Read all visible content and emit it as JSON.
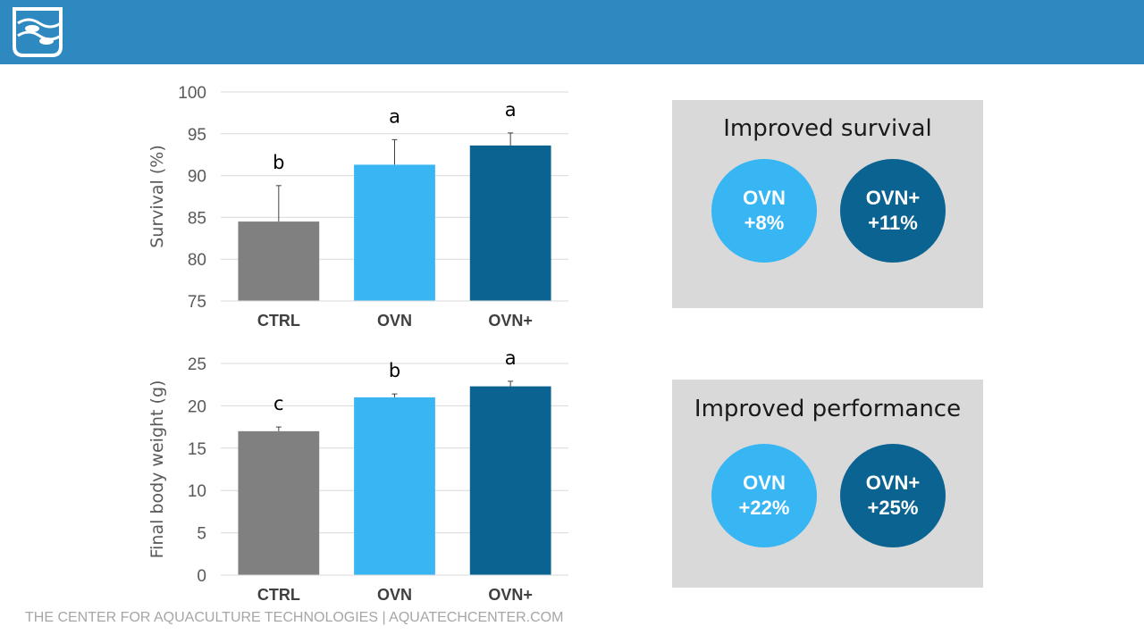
{
  "header": {
    "logo_name": "aquaculture-fish-logo"
  },
  "colors": {
    "header_bar": "#2e89c0",
    "ctrl": "#808080",
    "ovn": "#38b6f4",
    "ovn_plus": "#0b6392",
    "panel": "#d9d9d9"
  },
  "chart_data": [
    {
      "type": "bar",
      "ylabel": "Survival (%)",
      "xlabel": "",
      "ylim": [
        75,
        100
      ],
      "yticks": [
        75,
        80,
        85,
        90,
        95,
        100
      ],
      "grid": true,
      "categories": [
        "CTRL",
        "OVN",
        "OVN+"
      ],
      "values": [
        84.5,
        91.3,
        93.6
      ],
      "error_plus": [
        4.3,
        3.0,
        1.5
      ],
      "significance": [
        "b",
        "a",
        "a"
      ]
    },
    {
      "type": "bar",
      "ylabel": "Final body weight (g)",
      "xlabel": "",
      "ylim": [
        0,
        25
      ],
      "yticks": [
        0,
        5,
        10,
        15,
        20,
        25
      ],
      "grid": true,
      "categories": [
        "CTRL",
        "OVN",
        "OVN+"
      ],
      "values": [
        17.0,
        21.0,
        22.3
      ],
      "error_plus": [
        0.5,
        0.4,
        0.6
      ],
      "significance": [
        "c",
        "b",
        "a"
      ]
    }
  ],
  "panels": {
    "survival": {
      "title": "Improved survival",
      "circles": [
        {
          "name": "OVN",
          "value": "+8%"
        },
        {
          "name": "OVN+",
          "value": "+11%"
        }
      ]
    },
    "performance": {
      "title": "Improved performance",
      "circles": [
        {
          "name": "OVN",
          "value": "+22%"
        },
        {
          "name": "OVN+",
          "value": "+25%"
        }
      ]
    }
  },
  "footer": {
    "text": "THE CENTER FOR AQUACULTURE TECHNOLOGIES | AQUATECHCENTER.COM"
  }
}
